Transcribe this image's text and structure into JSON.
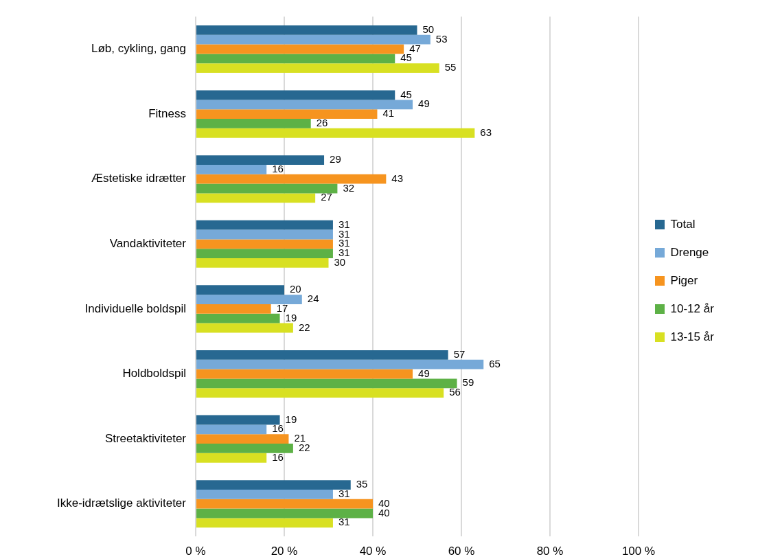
{
  "chart_data": {
    "type": "bar",
    "orientation": "horizontal",
    "categories": [
      "Løb, cykling, gang",
      "Fitness",
      "Æstetiske idrætter",
      "Vandaktiviteter",
      "Individuelle boldspil",
      "Holdboldspil",
      "Streetaktiviteter",
      "Ikke-idrætslige aktiviteter"
    ],
    "series": [
      {
        "name": "Total",
        "color": "#276891",
        "values": [
          50,
          45,
          29,
          31,
          20,
          57,
          19,
          35
        ]
      },
      {
        "name": "Drenge",
        "color": "#76a9d8",
        "values": [
          53,
          49,
          16,
          31,
          24,
          65,
          16,
          31
        ]
      },
      {
        "name": "Piger",
        "color": "#f6941f",
        "values": [
          47,
          41,
          43,
          31,
          17,
          49,
          21,
          40
        ]
      },
      {
        "name": "10-12 år",
        "color": "#5db146",
        "values": [
          45,
          26,
          32,
          31,
          19,
          59,
          22,
          40
        ]
      },
      {
        "name": "13-15 år",
        "color": "#d8e022",
        "values": [
          55,
          63,
          27,
          30,
          22,
          56,
          16,
          31
        ]
      }
    ],
    "xlim": [
      0,
      100
    ],
    "xticks": [
      {
        "value": 0,
        "label": "0 %"
      },
      {
        "value": 20,
        "label": "20 %"
      },
      {
        "value": 40,
        "label": "40 %"
      },
      {
        "value": 60,
        "label": "60 %"
      },
      {
        "value": 80,
        "label": "80 %"
      },
      {
        "value": 100,
        "label": "100 %"
      }
    ],
    "grid": "x",
    "legend": "right",
    "data_labels": true
  }
}
